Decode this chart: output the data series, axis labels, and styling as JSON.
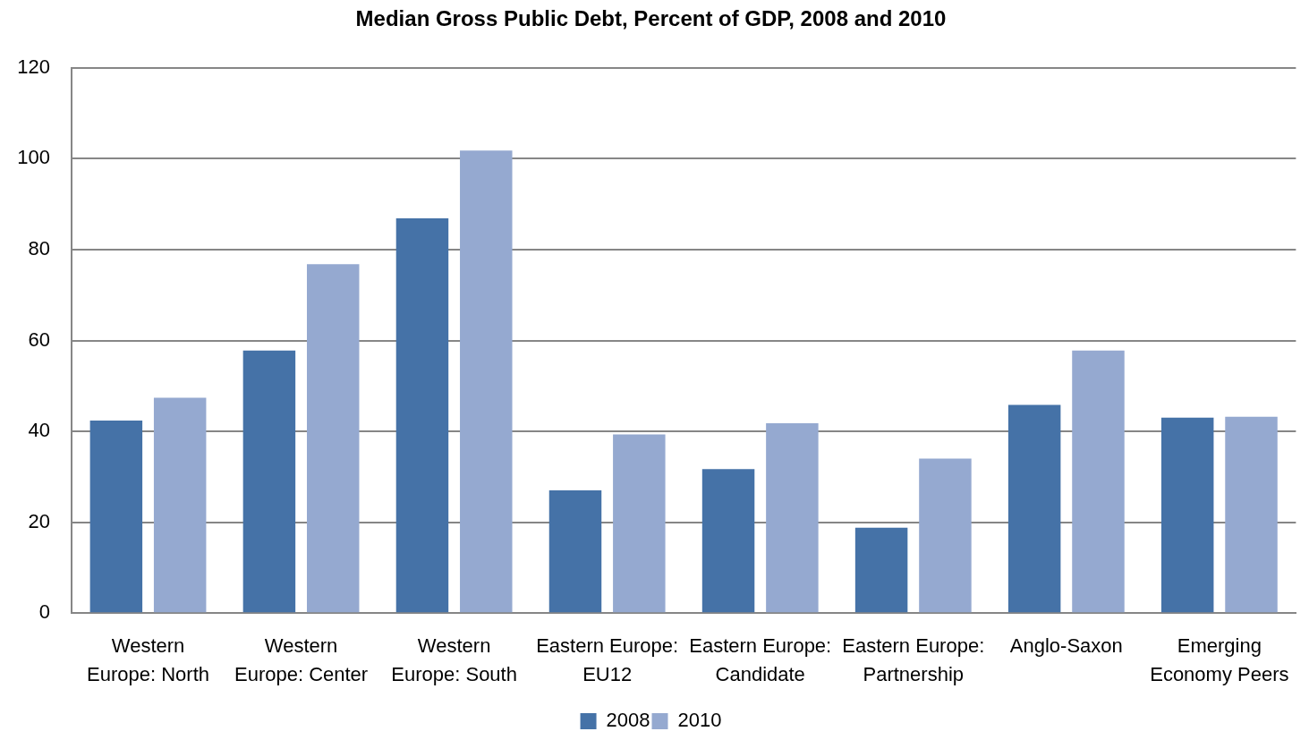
{
  "chart_data": {
    "type": "bar",
    "title": "Median Gross Public Debt, Percent of GDP, 2008 and 2010",
    "categories": [
      "Western Europe: North",
      "Western Europe: Center",
      "Western Europe: South",
      "Eastern Europe: EU12",
      "Eastern Europe: Candidate",
      "Eastern Europe: Partnership",
      "Anglo-Saxon",
      "Emerging Economy Peers"
    ],
    "series": [
      {
        "name": "2008",
        "color": "#4572a7",
        "values": [
          42.4,
          57.8,
          86.9,
          27,
          31.7,
          18.8,
          45.8,
          43
        ]
      },
      {
        "name": "2010",
        "color": "#95a9d0",
        "values": [
          47.4,
          76.8,
          101.8,
          39.3,
          41.8,
          34,
          57.8,
          43.2
        ]
      }
    ],
    "ylim": [
      0,
      120
    ],
    "yticks": [
      0,
      20,
      40,
      60,
      80,
      100,
      120
    ],
    "grid": "y",
    "legend": "bottom"
  }
}
